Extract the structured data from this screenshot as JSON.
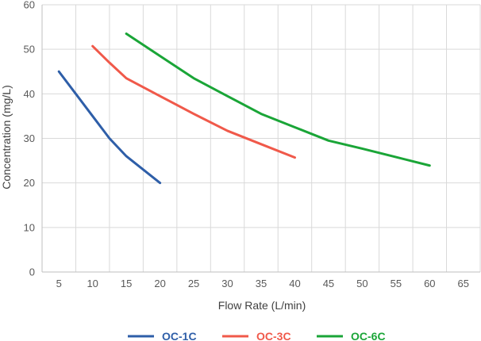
{
  "chart_data": {
    "type": "line",
    "title": "",
    "xlabel": "Flow Rate (L/min)",
    "ylabel": "Concentration (mg/L)",
    "xlim": [
      2.5,
      67.5
    ],
    "ylim": [
      0,
      60
    ],
    "xticks": [
      5,
      10,
      15,
      20,
      25,
      30,
      35,
      40,
      45,
      50,
      55,
      60,
      65
    ],
    "yticks": [
      0,
      10,
      20,
      30,
      40,
      50,
      60
    ],
    "grid": true,
    "legend_position": "bottom",
    "series": [
      {
        "name": "OC-1C",
        "color": "#2e5ea8",
        "x": [
          5,
          7.5,
          10,
          12.5,
          15,
          17.5,
          20
        ],
        "y": [
          45,
          40,
          35,
          30,
          26,
          23,
          20
        ]
      },
      {
        "name": "OC-3C",
        "color": "#f0594a",
        "x": [
          10,
          12.5,
          15,
          20,
          25,
          30,
          35,
          40
        ],
        "y": [
          50.7,
          47,
          43.5,
          39.5,
          35.5,
          31.7,
          28.7,
          25.7
        ]
      },
      {
        "name": "OC-6C",
        "color": "#1aa537",
        "x": [
          15,
          20,
          25,
          30,
          35,
          40,
          45,
          50,
          55,
          60
        ],
        "y": [
          53.5,
          48.5,
          43.5,
          39.5,
          35.5,
          32.5,
          29.5,
          27.7,
          25.8,
          23.9
        ]
      }
    ]
  }
}
